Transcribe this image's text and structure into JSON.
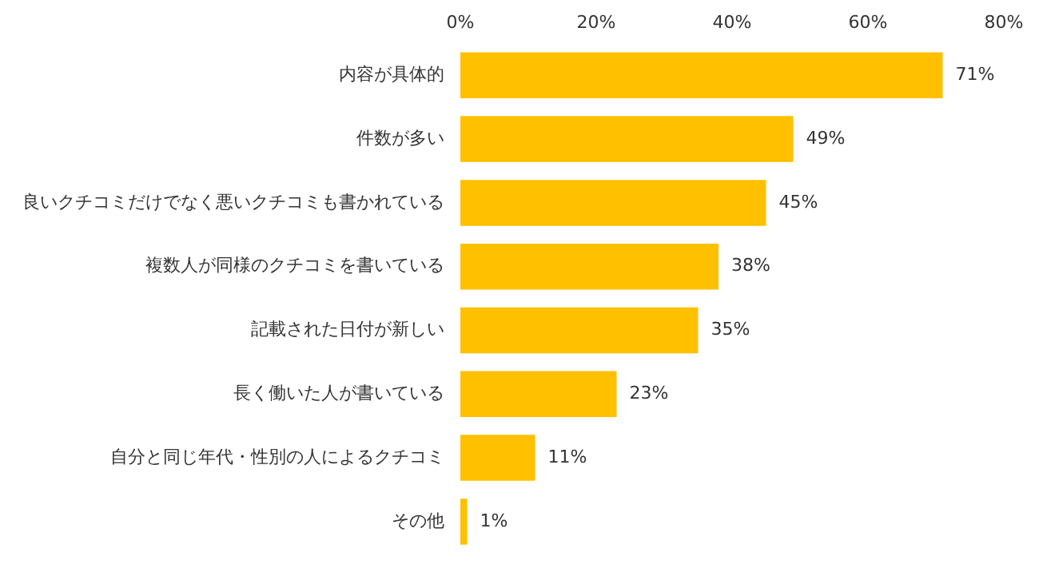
{
  "chart_data": {
    "type": "bar",
    "orientation": "horizontal",
    "categories": [
      "内容が具体的",
      "件数が多い",
      "良いクチコミだけでなく悪いクチコミも書かれている",
      "複数人が同様のクチコミを書いている",
      "記載された日付が新しい",
      "長く働いた人が書いている",
      "自分と同じ年代・性別の人によるクチコミ",
      "その他"
    ],
    "values": [
      71,
      49,
      45,
      38,
      35,
      23,
      11,
      1
    ],
    "value_labels": [
      "71%",
      "49%",
      "45%",
      "38%",
      "35%",
      "23%",
      "11%",
      "1%"
    ],
    "color": "#ffc000",
    "xlim": [
      0,
      80
    ],
    "xticks": [
      {
        "value": 0,
        "label": "0%"
      },
      {
        "value": 20,
        "label": "20%"
      },
      {
        "value": 40,
        "label": "40%"
      },
      {
        "value": 60,
        "label": "60%"
      },
      {
        "value": 80,
        "label": "80%"
      }
    ],
    "grid": false,
    "legend": false
  }
}
